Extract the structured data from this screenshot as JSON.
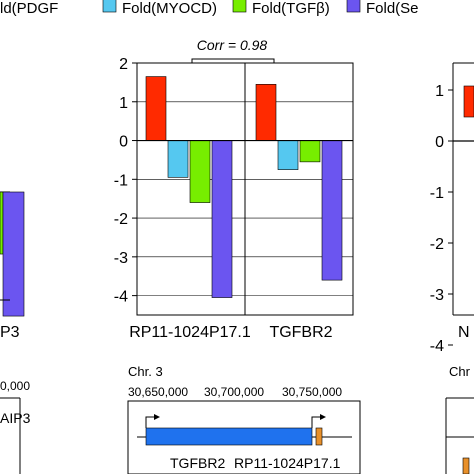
{
  "legend": [
    {
      "label": "ld(PDGF",
      "color": "#ff2a00"
    },
    {
      "label": "Fold(MYOCD)",
      "color": "#55c8f0"
    },
    {
      "label": "Fold(TGFβ)",
      "color": "#77ee00"
    },
    {
      "label": "Fold(Se",
      "color": "#6b55f0"
    }
  ],
  "corr_label": "Corr = 0.98",
  "chart_data": [
    {
      "type": "bar",
      "categories": [
        "P3"
      ],
      "series": [
        {
          "name": "ld(PDGF",
          "values": [
            null
          ]
        },
        {
          "name": "Fold(MYOCD)",
          "values": [
            null
          ]
        },
        {
          "name": "Fold(TGFβ)",
          "values": [
            -1.6
          ]
        },
        {
          "name": "Fold(Se",
          "values": [
            -3.2
          ]
        }
      ]
    },
    {
      "type": "bar",
      "categories": [
        "RP11-1024P17.1",
        "TGFBR2"
      ],
      "series": [
        {
          "name": "ld(PDGF",
          "values": [
            1.65,
            1.45
          ]
        },
        {
          "name": "Fold(MYOCD)",
          "values": [
            -0.95,
            -0.75
          ]
        },
        {
          "name": "Fold(TGFβ)",
          "values": [
            -1.6,
            -0.55
          ]
        },
        {
          "name": "Fold(Se",
          "values": [
            -4.05,
            -3.6
          ]
        }
      ],
      "ylim": [
        -4.5,
        2
      ],
      "yticks": [
        2,
        1,
        0,
        -1,
        -2,
        -3,
        -4
      ],
      "ytick_labels": [
        "2",
        "1",
        "0",
        "-1",
        "-2",
        "-3",
        "-4"
      ],
      "grid": true
    },
    {
      "type": "bar",
      "categories": [
        "N"
      ],
      "series": [
        {
          "name": "ld(PDGF",
          "values": [
            1.0
          ]
        }
      ],
      "yticks": [
        1,
        0,
        -1,
        -2,
        -3,
        -4
      ],
      "ytick_labels": [
        "1",
        "0",
        "-1",
        "-2",
        "-3",
        "-4"
      ]
    }
  ],
  "genome": {
    "left_tick": "0,000",
    "left_gene": "AIP3",
    "chr_label": "Chr. 3",
    "coord_ticks": [
      "30,650,000",
      "30,700,000",
      "30,750,000"
    ],
    "gene_labels": [
      "TGFBR2",
      "RP11-1024P17.1"
    ],
    "right_label": "Chr"
  }
}
